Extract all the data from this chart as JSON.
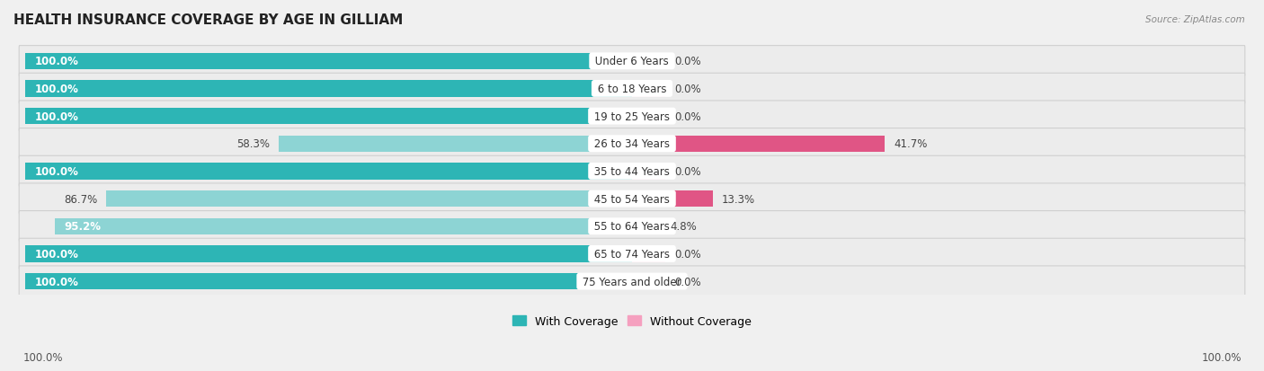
{
  "title": "HEALTH INSURANCE COVERAGE BY AGE IN GILLIAM",
  "source": "Source: ZipAtlas.com",
  "categories": [
    "Under 6 Years",
    "6 to 18 Years",
    "19 to 25 Years",
    "26 to 34 Years",
    "35 to 44 Years",
    "45 to 54 Years",
    "55 to 64 Years",
    "65 to 74 Years",
    "75 Years and older"
  ],
  "with_coverage": [
    100.0,
    100.0,
    100.0,
    58.3,
    100.0,
    86.7,
    95.2,
    100.0,
    100.0
  ],
  "without_coverage": [
    0.0,
    0.0,
    0.0,
    41.7,
    0.0,
    13.3,
    4.8,
    0.0,
    0.0
  ],
  "color_with_full": "#2db5b5",
  "color_with_partial": "#8dd4d4",
  "color_without_large": "#e05585",
  "color_without_small": "#f5a0bf",
  "color_without_zero": "#f5c0d5",
  "bg_color": "#e8e8e8",
  "row_bg": "#f4f4f4",
  "title_fontsize": 11,
  "label_fontsize": 8.5,
  "pct_fontsize": 8.5,
  "tick_fontsize": 8.5,
  "legend_fontsize": 9,
  "x_left_label": "100.0%",
  "x_right_label": "100.0%"
}
